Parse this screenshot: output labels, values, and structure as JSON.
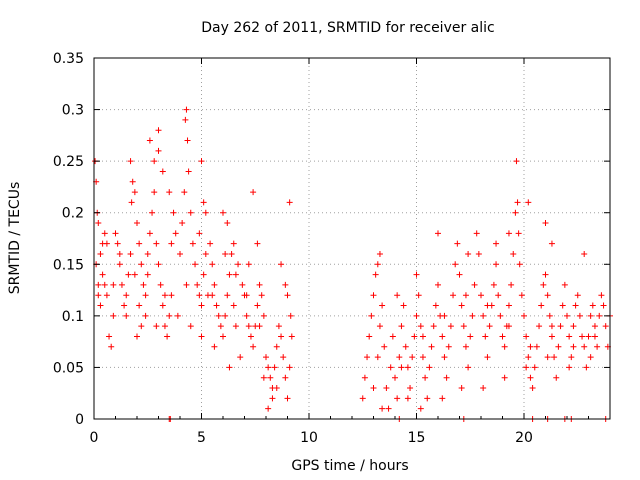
{
  "chart_data": {
    "type": "scatter",
    "title": "Day 262 of 2011, SRMTID for receiver alic",
    "xlabel": "GPS time / hours",
    "ylabel": "SRMTID / TECUs",
    "xlim": [
      0,
      24
    ],
    "ylim": [
      0,
      0.35
    ],
    "grid": true,
    "x_ticks": [
      0,
      5,
      10,
      15,
      20
    ],
    "x_tick_labels": [
      "0",
      "5",
      "10",
      "15",
      "20"
    ],
    "y_ticks": [
      0,
      0.05,
      0.1,
      0.15,
      0.2,
      0.25,
      0.3,
      0.35
    ],
    "y_tick_labels": [
      "0",
      "0.05",
      "0.1",
      "0.15",
      "0.2",
      "0.25",
      "0.3",
      "0.35"
    ],
    "marker": "plus",
    "color": "#ff0000",
    "points": [
      [
        0.05,
        0.25
      ],
      [
        0.1,
        0.23
      ],
      [
        0.15,
        0.2
      ],
      [
        0.2,
        0.19
      ],
      [
        0.3,
        0.16
      ],
      [
        0.4,
        0.14
      ],
      [
        0.5,
        0.13
      ],
      [
        0.6,
        0.12
      ],
      [
        0.1,
        0.15
      ],
      [
        0.2,
        0.13
      ],
      [
        0.3,
        0.11
      ],
      [
        0.4,
        0.17
      ],
      [
        0.5,
        0.18
      ],
      [
        0.7,
        0.08
      ],
      [
        0.8,
        0.07
      ],
      [
        0.9,
        0.1
      ],
      [
        1.0,
        0.18
      ],
      [
        1.1,
        0.17
      ],
      [
        1.2,
        0.15
      ],
      [
        1.3,
        0.13
      ],
      [
        1.4,
        0.11
      ],
      [
        1.5,
        0.1
      ],
      [
        1.6,
        0.14
      ],
      [
        1.7,
        0.16
      ],
      [
        1.8,
        0.23
      ],
      [
        1.9,
        0.22
      ],
      [
        2.0,
        0.19
      ],
      [
        2.1,
        0.17
      ],
      [
        2.2,
        0.15
      ],
      [
        2.3,
        0.13
      ],
      [
        2.4,
        0.12
      ],
      [
        2.5,
        0.14
      ],
      [
        1.7,
        0.25
      ],
      [
        1.75,
        0.21
      ],
      [
        2.0,
        0.08
      ],
      [
        2.2,
        0.09
      ],
      [
        2.4,
        0.1
      ],
      [
        2.6,
        0.18
      ],
      [
        2.7,
        0.2
      ],
      [
        2.8,
        0.22
      ],
      [
        2.9,
        0.17
      ],
      [
        3.0,
        0.15
      ],
      [
        3.1,
        0.13
      ],
      [
        3.2,
        0.11
      ],
      [
        3.3,
        0.09
      ],
      [
        3.4,
        0.08
      ],
      [
        3.5,
        0.1
      ],
      [
        3.6,
        0.12
      ],
      [
        2.6,
        0.27
      ],
      [
        2.8,
        0.25
      ],
      [
        3.0,
        0.28
      ],
      [
        3.0,
        0.26
      ],
      [
        3.2,
        0.24
      ],
      [
        3.5,
        0.22
      ],
      [
        3.7,
        0.2
      ],
      [
        3.8,
        0.18
      ],
      [
        4.0,
        0.16
      ],
      [
        4.1,
        0.19
      ],
      [
        4.2,
        0.22
      ],
      [
        4.25,
        0.29
      ],
      [
        4.3,
        0.3
      ],
      [
        4.35,
        0.27
      ],
      [
        4.4,
        0.24
      ],
      [
        4.5,
        0.2
      ],
      [
        4.6,
        0.17
      ],
      [
        4.7,
        0.15
      ],
      [
        4.8,
        0.13
      ],
      [
        4.9,
        0.12
      ],
      [
        5.0,
        0.11
      ],
      [
        5.1,
        0.14
      ],
      [
        5.2,
        0.16
      ],
      [
        5.3,
        0.12
      ],
      [
        5.0,
        0.25
      ],
      [
        5.1,
        0.21
      ],
      [
        5.2,
        0.2
      ],
      [
        5.4,
        0.17
      ],
      [
        5.5,
        0.15
      ],
      [
        5.6,
        0.13
      ],
      [
        5.7,
        0.11
      ],
      [
        5.8,
        0.1
      ],
      [
        5.9,
        0.09
      ],
      [
        6.0,
        0.08
      ],
      [
        6.1,
        0.1
      ],
      [
        6.2,
        0.12
      ],
      [
        6.3,
        0.14
      ],
      [
        6.4,
        0.16
      ],
      [
        6.5,
        0.11
      ],
      [
        6.6,
        0.09
      ],
      [
        6.0,
        0.2
      ],
      [
        6.2,
        0.19
      ],
      [
        6.5,
        0.17
      ],
      [
        6.7,
        0.15
      ],
      [
        6.9,
        0.13
      ],
      [
        7.0,
        0.12
      ],
      [
        7.1,
        0.1
      ],
      [
        7.2,
        0.09
      ],
      [
        7.3,
        0.08
      ],
      [
        7.4,
        0.07
      ],
      [
        7.5,
        0.09
      ],
      [
        7.6,
        0.11
      ],
      [
        7.7,
        0.13
      ],
      [
        7.8,
        0.12
      ],
      [
        7.9,
        0.1
      ],
      [
        8.0,
        0.06
      ],
      [
        7.4,
        0.22
      ],
      [
        7.2,
        0.15
      ],
      [
        7.6,
        0.17
      ],
      [
        8.1,
        0.05
      ],
      [
        8.2,
        0.04
      ],
      [
        8.3,
        0.03
      ],
      [
        8.4,
        0.05
      ],
      [
        8.5,
        0.07
      ],
      [
        8.6,
        0.09
      ],
      [
        8.7,
        0.08
      ],
      [
        8.8,
        0.06
      ],
      [
        8.9,
        0.04
      ],
      [
        9.0,
        0.02
      ],
      [
        9.1,
        0.05
      ],
      [
        9.2,
        0.08
      ],
      [
        9.0,
        0.12
      ],
      [
        8.7,
        0.15
      ],
      [
        8.9,
        0.13
      ],
      [
        9.1,
        0.21
      ],
      [
        9.15,
        0.1
      ],
      [
        8.5,
        0.03
      ],
      [
        8.3,
        0.02
      ],
      [
        8.1,
        0.01
      ],
      [
        7.9,
        0.04
      ],
      [
        6.8,
        0.06
      ],
      [
        6.3,
        0.05
      ],
      [
        5.6,
        0.07
      ],
      [
        5.0,
        0.08
      ],
      [
        4.5,
        0.09
      ],
      [
        3.9,
        0.1
      ],
      [
        3.3,
        0.12
      ],
      [
        2.5,
        0.16
      ],
      [
        1.9,
        0.14
      ],
      [
        1.2,
        0.16
      ],
      [
        0.6,
        0.17
      ],
      [
        0.2,
        0.12
      ],
      [
        0.9,
        0.13
      ],
      [
        1.5,
        0.12
      ],
      [
        2.1,
        0.11
      ],
      [
        2.9,
        0.09
      ],
      [
        3.6,
        0.17
      ],
      [
        4.3,
        0.13
      ],
      [
        4.9,
        0.18
      ],
      [
        5.5,
        0.12
      ],
      [
        6.1,
        0.16
      ],
      [
        6.6,
        0.14
      ],
      [
        7.1,
        0.12
      ],
      [
        7.7,
        0.09
      ],
      [
        3.5,
        0.0
      ],
      [
        3.55,
        0.0
      ],
      [
        12.5,
        0.02
      ],
      [
        12.6,
        0.04
      ],
      [
        12.7,
        0.06
      ],
      [
        12.8,
        0.08
      ],
      [
        12.9,
        0.1
      ],
      [
        13.0,
        0.12
      ],
      [
        13.1,
        0.14
      ],
      [
        13.2,
        0.15
      ],
      [
        13.3,
        0.16
      ],
      [
        13.4,
        0.11
      ],
      [
        13.5,
        0.07
      ],
      [
        13.6,
        0.03
      ],
      [
        13.7,
        0.01
      ],
      [
        13.8,
        0.05
      ],
      [
        13.9,
        0.08
      ],
      [
        14.0,
        0.04
      ],
      [
        14.1,
        0.02
      ],
      [
        14.2,
        0.06
      ],
      [
        14.3,
        0.09
      ],
      [
        14.4,
        0.11
      ],
      [
        14.5,
        0.07
      ],
      [
        14.6,
        0.05
      ],
      [
        14.7,
        0.03
      ],
      [
        14.8,
        0.06
      ],
      [
        14.9,
        0.08
      ],
      [
        15.0,
        0.1
      ],
      [
        15.1,
        0.12
      ],
      [
        15.2,
        0.09
      ],
      [
        15.3,
        0.06
      ],
      [
        15.4,
        0.04
      ],
      [
        15.5,
        0.02
      ],
      [
        15.6,
        0.05
      ],
      [
        15.7,
        0.07
      ],
      [
        15.8,
        0.09
      ],
      [
        15.9,
        0.11
      ],
      [
        16.0,
        0.13
      ],
      [
        16.1,
        0.1
      ],
      [
        16.2,
        0.08
      ],
      [
        16.3,
        0.06
      ],
      [
        16.4,
        0.04
      ],
      [
        16.5,
        0.07
      ],
      [
        16.6,
        0.09
      ],
      [
        16.7,
        0.12
      ],
      [
        16.8,
        0.15
      ],
      [
        16.9,
        0.17
      ],
      [
        17.0,
        0.14
      ],
      [
        17.1,
        0.11
      ],
      [
        17.2,
        0.09
      ],
      [
        17.3,
        0.07
      ],
      [
        17.4,
        0.05
      ],
      [
        17.5,
        0.08
      ],
      [
        17.6,
        0.1
      ],
      [
        17.7,
        0.13
      ],
      [
        17.8,
        0.18
      ],
      [
        17.9,
        0.16
      ],
      [
        18.0,
        0.12
      ],
      [
        18.1,
        0.1
      ],
      [
        18.2,
        0.08
      ],
      [
        18.3,
        0.06
      ],
      [
        18.4,
        0.09
      ],
      [
        18.5,
        0.11
      ],
      [
        18.6,
        0.13
      ],
      [
        18.7,
        0.15
      ],
      [
        18.8,
        0.12
      ],
      [
        18.9,
        0.1
      ],
      [
        19.0,
        0.08
      ],
      [
        19.1,
        0.07
      ],
      [
        19.2,
        0.09
      ],
      [
        19.3,
        0.11
      ],
      [
        19.4,
        0.13
      ],
      [
        19.5,
        0.16
      ],
      [
        19.6,
        0.2
      ],
      [
        19.65,
        0.25
      ],
      [
        19.7,
        0.21
      ],
      [
        19.75,
        0.18
      ],
      [
        19.8,
        0.15
      ],
      [
        19.9,
        0.12
      ],
      [
        20.0,
        0.1
      ],
      [
        20.1,
        0.08
      ],
      [
        20.2,
        0.06
      ],
      [
        20.3,
        0.04
      ],
      [
        20.4,
        0.03
      ],
      [
        20.5,
        0.05
      ],
      [
        20.6,
        0.07
      ],
      [
        20.7,
        0.09
      ],
      [
        20.8,
        0.11
      ],
      [
        20.9,
        0.13
      ],
      [
        21.0,
        0.14
      ],
      [
        21.1,
        0.12
      ],
      [
        21.2,
        0.1
      ],
      [
        21.3,
        0.08
      ],
      [
        21.4,
        0.06
      ],
      [
        21.5,
        0.04
      ],
      [
        21.6,
        0.07
      ],
      [
        21.7,
        0.09
      ],
      [
        21.8,
        0.11
      ],
      [
        21.9,
        0.13
      ],
      [
        22.0,
        0.1
      ],
      [
        22.1,
        0.08
      ],
      [
        22.2,
        0.06
      ],
      [
        22.3,
        0.09
      ],
      [
        22.4,
        0.11
      ],
      [
        22.5,
        0.12
      ],
      [
        22.6,
        0.1
      ],
      [
        22.7,
        0.08
      ],
      [
        22.8,
        0.07
      ],
      [
        22.9,
        0.05
      ],
      [
        23.0,
        0.08
      ],
      [
        23.1,
        0.1
      ],
      [
        23.2,
        0.11
      ],
      [
        23.3,
        0.09
      ],
      [
        23.4,
        0.07
      ],
      [
        23.5,
        0.1
      ],
      [
        23.6,
        0.12
      ],
      [
        23.7,
        0.11
      ],
      [
        23.8,
        0.09
      ],
      [
        23.9,
        0.07
      ],
      [
        24.0,
        0.1
      ],
      [
        21.0,
        0.19
      ],
      [
        21.3,
        0.17
      ],
      [
        22.8,
        0.16
      ],
      [
        20.2,
        0.21
      ],
      [
        19.3,
        0.18
      ],
      [
        17.4,
        0.16
      ],
      [
        18.7,
        0.17
      ],
      [
        16.0,
        0.18
      ],
      [
        15.0,
        0.14
      ],
      [
        14.1,
        0.12
      ],
      [
        13.2,
        0.06
      ],
      [
        13.0,
        0.03
      ],
      [
        13.4,
        0.01
      ],
      [
        14.6,
        0.02
      ],
      [
        15.2,
        0.01
      ],
      [
        16.2,
        0.02
      ],
      [
        17.1,
        0.03
      ],
      [
        18.1,
        0.03
      ],
      [
        19.1,
        0.04
      ],
      [
        20.1,
        0.05
      ],
      [
        21.1,
        0.06
      ],
      [
        22.1,
        0.05
      ],
      [
        23.1,
        0.06
      ],
      [
        13.3,
        0.09
      ],
      [
        14.3,
        0.05
      ],
      [
        15.3,
        0.08
      ],
      [
        16.3,
        0.1
      ],
      [
        17.3,
        0.12
      ],
      [
        18.3,
        0.11
      ],
      [
        19.3,
        0.09
      ],
      [
        20.3,
        0.07
      ],
      [
        21.3,
        0.09
      ],
      [
        22.3,
        0.07
      ],
      [
        23.3,
        0.08
      ],
      [
        14.2,
        0.0
      ],
      [
        17.2,
        0.0
      ],
      [
        20.4,
        0.0
      ],
      [
        21.1,
        0.0
      ],
      [
        21.9,
        0.0
      ],
      [
        22.2,
        0.0
      ],
      [
        23.8,
        0.0
      ]
    ]
  }
}
